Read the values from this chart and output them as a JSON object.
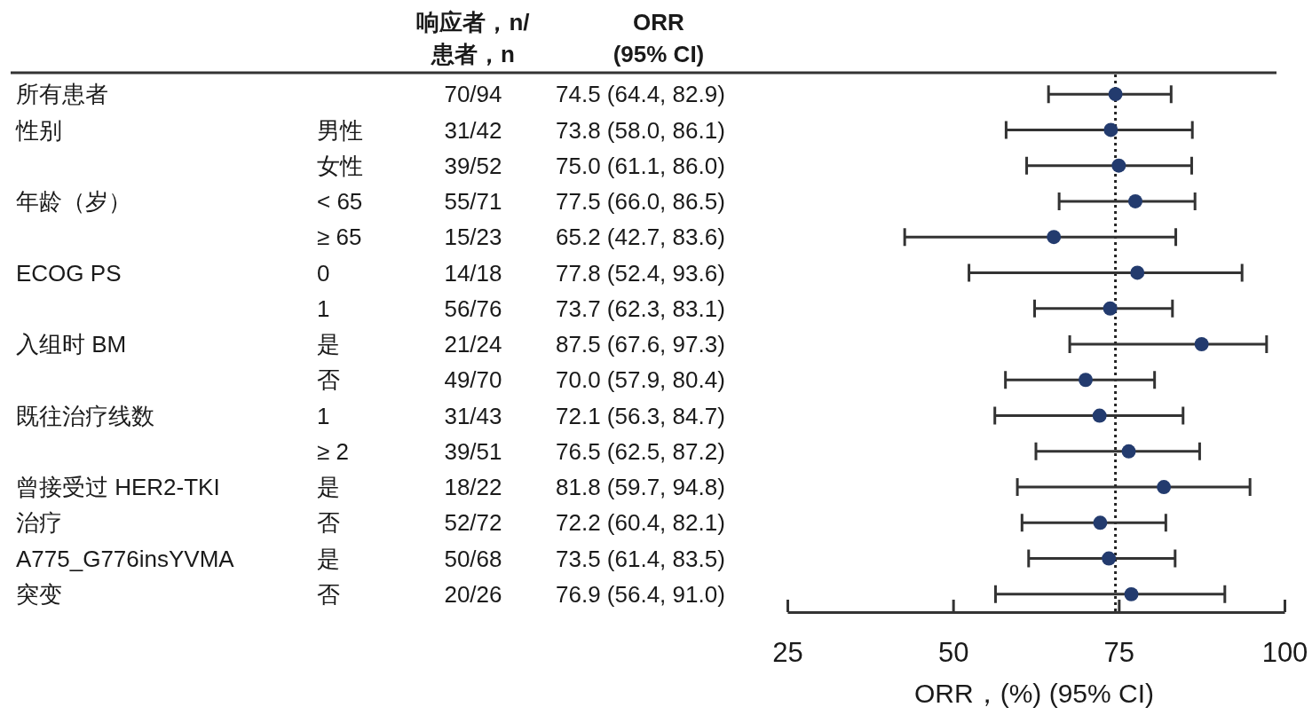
{
  "chart_data": [
    {
      "type": "other",
      "categories": [
        null,
        null,
        "响应者，n/\n患者，n",
        "ORR\n(95% CI)"
      ],
      "cell_labels": [
        [
          "所有患者",
          null,
          "70/94",
          "74.5 (64.4, 82.9)"
        ],
        [
          "性别",
          "男性",
          "31/42",
          "73.8 (58.0, 86.1)"
        ],
        [
          null,
          "女性",
          "39/52",
          "75.0 (61.1, 86.0)"
        ],
        [
          "年龄（岁）",
          "< 65",
          "55/71",
          "77.5 (66.0, 86.5)"
        ],
        [
          null,
          "≥ 65",
          "15/23",
          "65.2 (42.7, 83.6)"
        ],
        [
          "ECOG PS",
          "0",
          "14/18",
          "77.8 (52.4, 93.6)"
        ],
        [
          null,
          "1",
          "56/76",
          "73.7 (62.3, 83.1)"
        ],
        [
          "入组时 BM",
          "是",
          "21/24",
          "87.5 (67.6, 97.3)"
        ],
        [
          null,
          "否",
          "49/70",
          "70.0 (57.9, 80.4)"
        ],
        [
          "既往治疗线数",
          "1",
          "31/43",
          "72.1 (56.3, 84.7)"
        ],
        [
          null,
          "≥ 2",
          "39/51",
          "76.5 (62.5, 87.2)"
        ],
        [
          "曾接受过 HER2-TKI",
          "是",
          "18/22",
          "81.8 (59.7, 94.8)"
        ],
        [
          "治疗",
          "否",
          "52/72",
          "72.2 (60.4, 82.1)"
        ],
        [
          "A775_G776insYVMA",
          "是",
          "50/68",
          "73.5 (61.4, 83.5)"
        ],
        [
          "突变",
          "否",
          "20/26",
          "76.9 (56.4, 91.0)"
        ]
      ]
    },
    {
      "type": "scatter",
      "orientation": "horizontal",
      "marker": "circle",
      "color": "#233b6e",
      "categories": [
        null,
        null,
        null,
        null,
        null,
        null,
        null,
        null,
        null,
        null,
        null,
        null,
        null,
        null,
        null
      ],
      "values": [
        74.5,
        73.8,
        75.0,
        77.5,
        65.2,
        77.8,
        73.7,
        87.5,
        70.0,
        72.1,
        76.5,
        81.8,
        72.2,
        73.5,
        76.9
      ],
      "errors": [
        [
          64.4,
          82.9
        ],
        [
          58.0,
          86.1
        ],
        [
          61.1,
          86.0
        ],
        [
          66.0,
          86.5
        ],
        [
          42.7,
          83.6
        ],
        [
          52.4,
          93.6
        ],
        [
          62.3,
          83.1
        ],
        [
          67.6,
          97.3
        ],
        [
          57.9,
          80.4
        ],
        [
          56.3,
          84.7
        ],
        [
          62.5,
          87.2
        ],
        [
          59.7,
          94.8
        ],
        [
          60.4,
          82.1
        ],
        [
          61.4,
          83.5
        ],
        [
          56.4,
          91.0
        ]
      ],
      "xlim": [
        25,
        100
      ],
      "xticks": [
        25,
        50,
        75,
        100
      ],
      "xlabel": "ORR，(%) (95% CI)",
      "ref_lines": [
        {
          "axis": "x",
          "value": 74.5,
          "line_style": "dotted",
          "color": "#222222"
        }
      ]
    }
  ]
}
